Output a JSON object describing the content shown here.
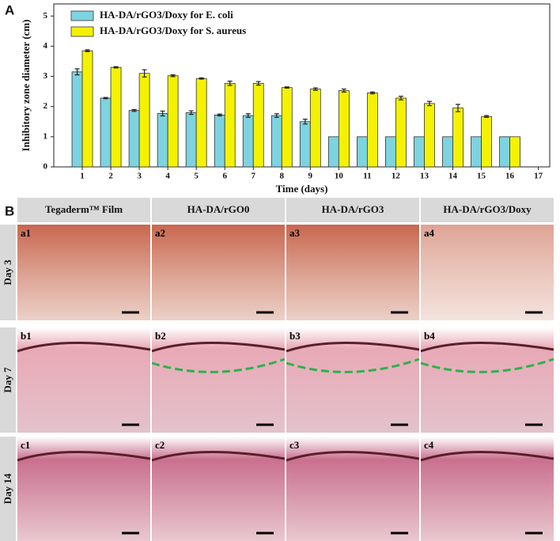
{
  "panel_labels": [
    "A",
    "B"
  ],
  "chart_data": {
    "type": "bar",
    "xlabel": "Time (days)",
    "ylabel": "Inhibitory zone diameter (cm)",
    "x": [
      1,
      2,
      3,
      4,
      5,
      6,
      7,
      8,
      9,
      10,
      11,
      12,
      13,
      14,
      15,
      16
    ],
    "xlim": [
      0,
      17.4
    ],
    "xticks": [
      1,
      2,
      3,
      4,
      5,
      6,
      7,
      8,
      9,
      10,
      11,
      12,
      13,
      14,
      15,
      16,
      17
    ],
    "ylim": [
      0,
      5.4
    ],
    "yticks": [
      0,
      1,
      2,
      3,
      4,
      5
    ],
    "legend": "upper left",
    "series": [
      {
        "name": "HA-DA/rGO3/Doxy for E. coli",
        "color": "#7ed3e1",
        "values": [
          3.15,
          2.28,
          1.87,
          1.77,
          1.8,
          1.72,
          1.7,
          1.7,
          1.5,
          1,
          1,
          1,
          1,
          1,
          1,
          1
        ],
        "errors": [
          0.1,
          0.02,
          0.03,
          0.08,
          0.06,
          0.03,
          0.06,
          0.06,
          0.08,
          0,
          0,
          0,
          0,
          0,
          0,
          0
        ]
      },
      {
        "name": "HA-DA/rGO3/Doxy for S. aureus",
        "color": "#f4f200",
        "values": [
          3.85,
          3.3,
          3.1,
          3.02,
          2.93,
          2.77,
          2.77,
          2.63,
          2.58,
          2.53,
          2.45,
          2.28,
          2.1,
          1.95,
          1.67,
          1.0
        ],
        "errors": [
          0.03,
          0.02,
          0.12,
          0.03,
          0.02,
          0.07,
          0.06,
          0.02,
          0.04,
          0.05,
          0.03,
          0.06,
          0.07,
          0.12,
          0.03,
          0
        ]
      }
    ]
  },
  "panel_b": {
    "columns": [
      "Tegaderm™ Film",
      "HA-DA/rGO0",
      "HA-DA/rGO3",
      "HA-DA/rGO3/Doxy"
    ],
    "rows": [
      "Day 3",
      "Day 7",
      "Day 14"
    ],
    "images": [
      [
        "a1",
        "a2",
        "a3",
        "a4"
      ],
      [
        "b1",
        "b2",
        "b3",
        "b4"
      ],
      [
        "c1",
        "c2",
        "c3",
        "c4"
      ]
    ]
  }
}
